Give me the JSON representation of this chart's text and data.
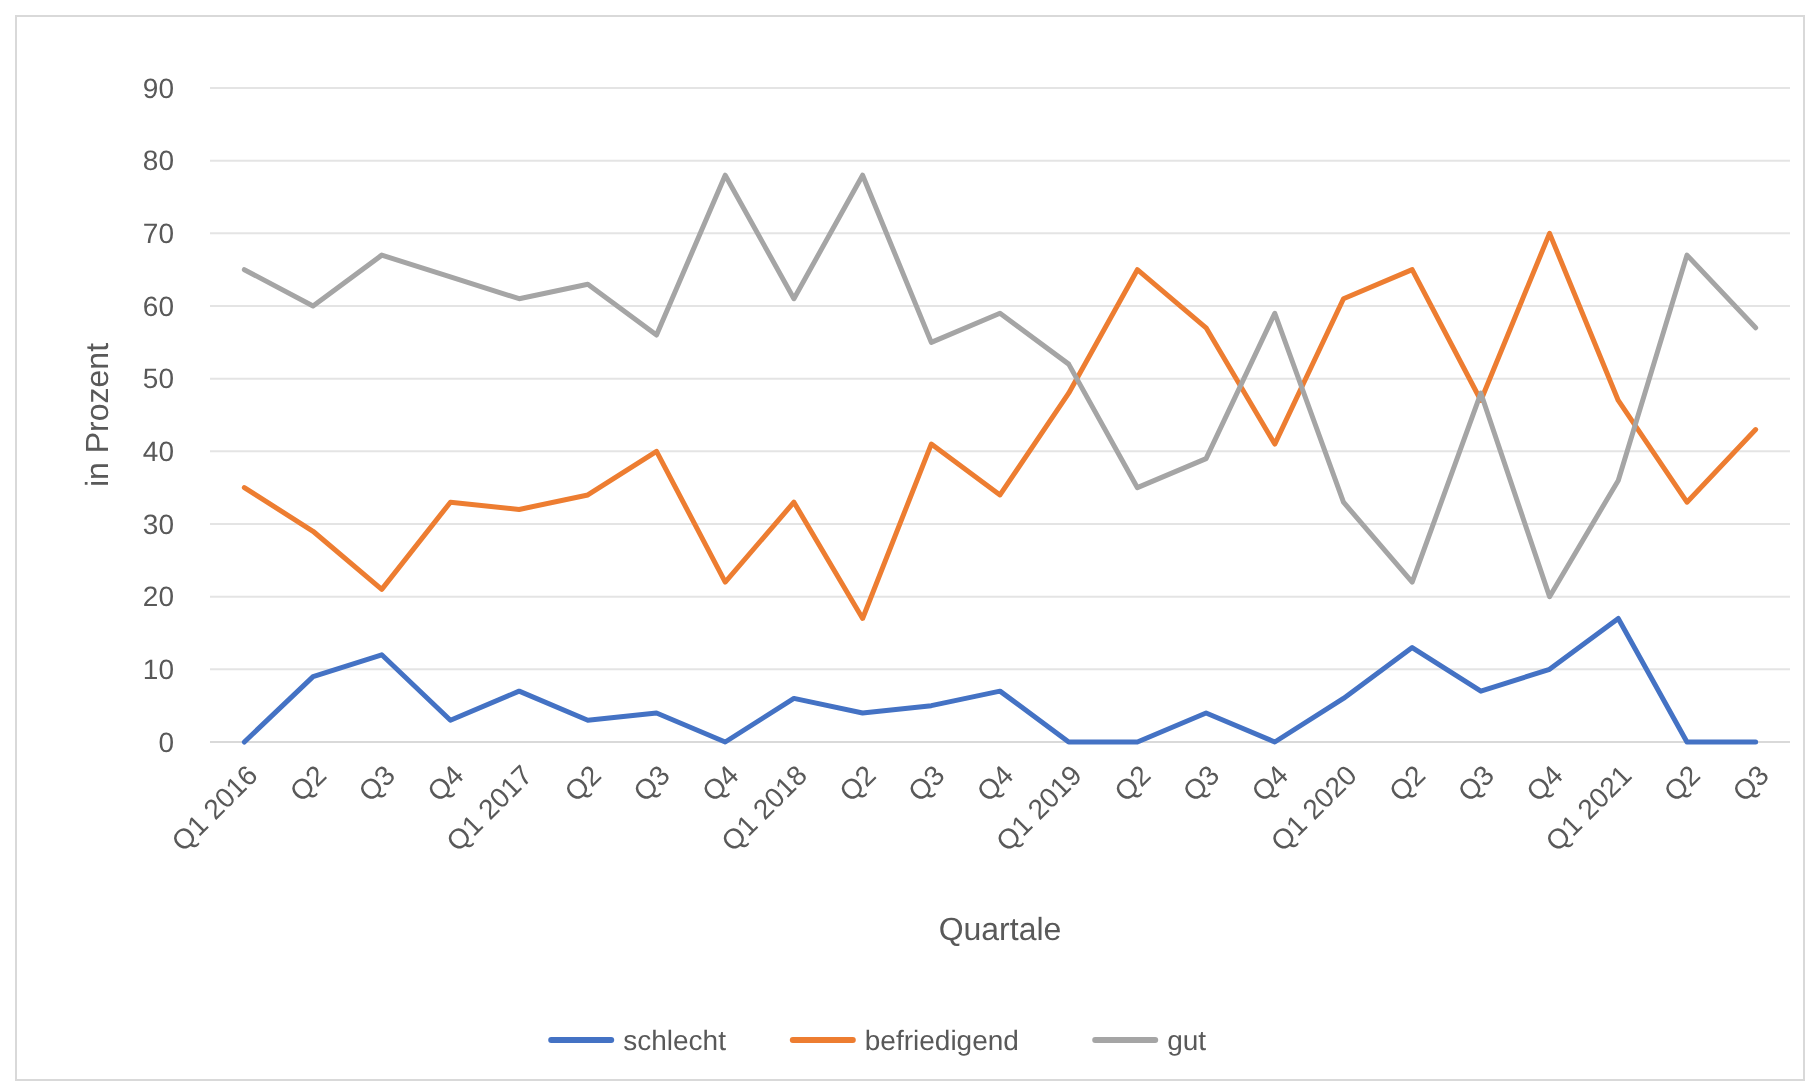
{
  "chart_data": {
    "type": "line",
    "xlabel": "Quartale",
    "ylabel": "in Prozent",
    "categories": [
      "Q1 2016",
      "Q2",
      "Q3",
      "Q4",
      "Q1 2017",
      "Q2",
      "Q3",
      "Q4",
      "Q1 2018",
      "Q2",
      "Q3",
      "Q4",
      "Q1 2019",
      "Q2",
      "Q3",
      "Q4",
      "Q1 2020",
      "Q2",
      "Q3",
      "Q4",
      "Q1 2021",
      "Q2",
      "Q3"
    ],
    "series": [
      {
        "name": "schlecht",
        "color": "#4472c4",
        "values": [
          0,
          9,
          12,
          3,
          7,
          3,
          4,
          0,
          6,
          4,
          5,
          7,
          0,
          0,
          4,
          0,
          6,
          13,
          7,
          10,
          17,
          0,
          0
        ]
      },
      {
        "name": "befriedigend",
        "color": "#ed7d31",
        "values": [
          35,
          29,
          21,
          33,
          32,
          34,
          40,
          22,
          33,
          17,
          41,
          34,
          48,
          65,
          57,
          41,
          61,
          65,
          47,
          70,
          47,
          33,
          43
        ]
      },
      {
        "name": "gut",
        "color": "#a5a5a5",
        "values": [
          65,
          60,
          67,
          64,
          61,
          63,
          56,
          78,
          61,
          78,
          55,
          59,
          52,
          35,
          39,
          59,
          33,
          22,
          48,
          20,
          36,
          67,
          57
        ]
      }
    ],
    "ylim": [
      0,
      90
    ],
    "yticks": [
      0,
      10,
      20,
      30,
      40,
      50,
      60,
      70,
      80,
      90
    ],
    "grid": "y",
    "legend": "bottom",
    "marker": "none",
    "line_style": "solid"
  }
}
